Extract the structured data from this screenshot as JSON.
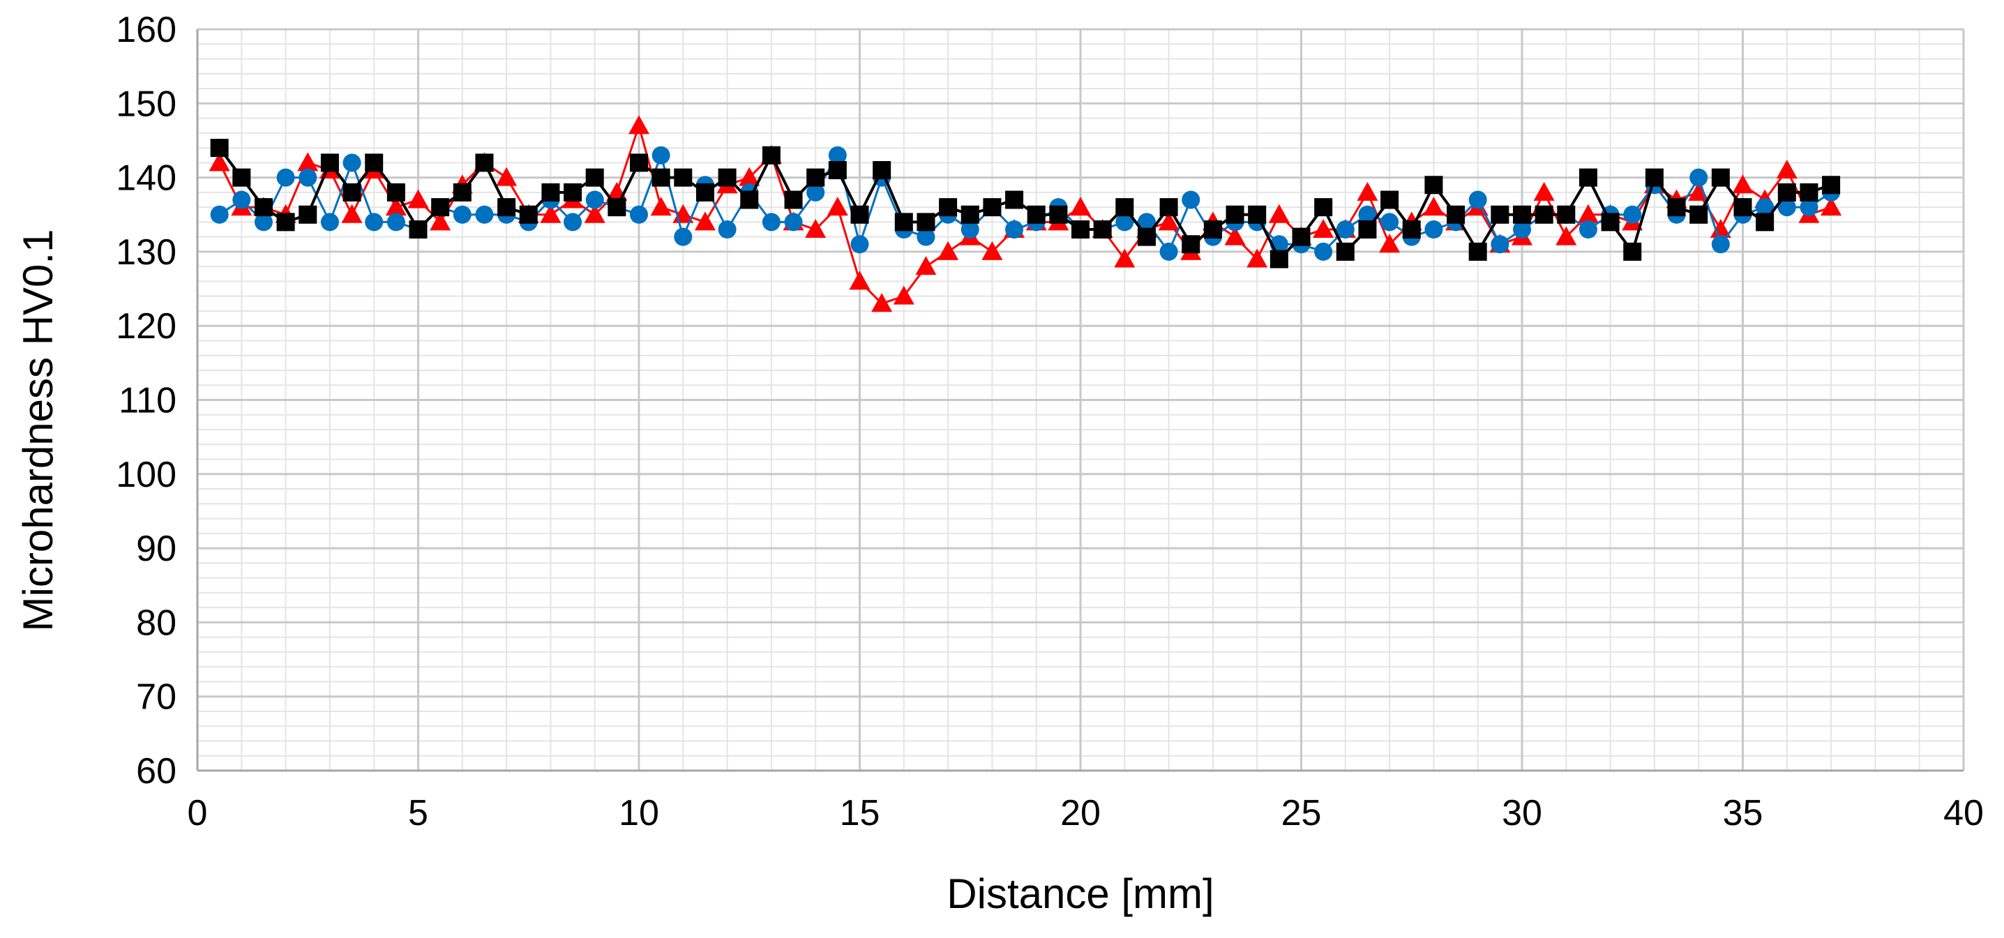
{
  "chart_data": {
    "type": "line",
    "title": "",
    "xlabel": "Distance [mm]",
    "ylabel": "Microhardness HV0.1",
    "xlim": [
      0,
      40
    ],
    "ylim": [
      60,
      160
    ],
    "x_major_ticks": [
      0,
      5,
      10,
      15,
      20,
      25,
      30,
      35,
      40
    ],
    "y_major_ticks": [
      60,
      70,
      80,
      90,
      100,
      110,
      120,
      130,
      140,
      150,
      160
    ],
    "x_tick_labels": [
      "0",
      "5",
      "10",
      "15",
      "20",
      "25",
      "30",
      "35",
      "40"
    ],
    "y_tick_labels": [
      "60",
      "70",
      "80",
      "90",
      "100",
      "110",
      "120",
      "130",
      "140",
      "150",
      "160"
    ],
    "grid": true,
    "legend": "none",
    "x": [
      0.5,
      1,
      1.5,
      2,
      2.5,
      3,
      3.5,
      4,
      4.5,
      5,
      5.5,
      6,
      6.5,
      7,
      7.5,
      8,
      8.5,
      9,
      9.5,
      10,
      10.5,
      11,
      11.5,
      12,
      12.5,
      13,
      13.5,
      14,
      14.5,
      15,
      15.5,
      16,
      16.5,
      17,
      17.5,
      18,
      18.5,
      19,
      19.5,
      20,
      20.5,
      21,
      21.5,
      22,
      22.5,
      23,
      23.5,
      24,
      24.5,
      25,
      25.5,
      26,
      26.5,
      27,
      27.5,
      28,
      28.5,
      29,
      29.5,
      30,
      30.5,
      31,
      31.5,
      32,
      32.5,
      33,
      33.5,
      34,
      34.5,
      35,
      35.5,
      36,
      36.5,
      37
    ],
    "series": [
      {
        "marker": "triangle",
        "color": "#ff0000",
        "values": [
          142,
          136,
          136,
          135,
          142,
          141,
          135,
          141,
          136,
          137,
          134,
          139,
          142,
          140,
          135,
          135,
          137,
          135,
          138,
          147,
          136,
          135,
          134,
          139,
          140,
          143,
          134,
          133,
          136,
          126,
          123,
          124,
          128,
          130,
          132,
          130,
          133,
          134,
          134,
          136,
          133,
          129,
          133,
          134,
          130,
          134,
          132,
          129,
          135,
          132,
          133,
          133,
          138,
          131,
          134,
          136,
          134,
          136,
          131,
          132,
          138,
          132,
          135,
          135,
          134,
          139,
          137,
          138,
          133,
          139,
          137,
          141,
          135,
          136
        ]
      },
      {
        "marker": "circle",
        "color": "#0070c0",
        "values": [
          135,
          137,
          134,
          140,
          140,
          134,
          142,
          134,
          134,
          133,
          136,
          135,
          135,
          135,
          134,
          137,
          134,
          137,
          136,
          135,
          143,
          132,
          139,
          133,
          138,
          134,
          134,
          138,
          143,
          131,
          140,
          133,
          132,
          135,
          133,
          136,
          133,
          134,
          136,
          133,
          133,
          134,
          134,
          130,
          137,
          132,
          134,
          134,
          131,
          131,
          130,
          133,
          135,
          134,
          132,
          133,
          134,
          137,
          131,
          133,
          135,
          135,
          133,
          135,
          135,
          139,
          135,
          140,
          131,
          135,
          136,
          136,
          136,
          138
        ]
      },
      {
        "marker": "square",
        "color": "#000000",
        "values": [
          144,
          140,
          136,
          134,
          135,
          142,
          138,
          142,
          138,
          133,
          136,
          138,
          142,
          136,
          135,
          138,
          138,
          140,
          136,
          142,
          140,
          140,
          138,
          140,
          137,
          143,
          137,
          140,
          141,
          135,
          141,
          134,
          134,
          136,
          135,
          136,
          137,
          135,
          135,
          133,
          133,
          136,
          132,
          136,
          131,
          133,
          135,
          135,
          129,
          132,
          136,
          130,
          133,
          137,
          133,
          139,
          135,
          130,
          135,
          135,
          135,
          135,
          140,
          134,
          130,
          140,
          136,
          135,
          140,
          136,
          134,
          138,
          138,
          139
        ]
      }
    ]
  }
}
